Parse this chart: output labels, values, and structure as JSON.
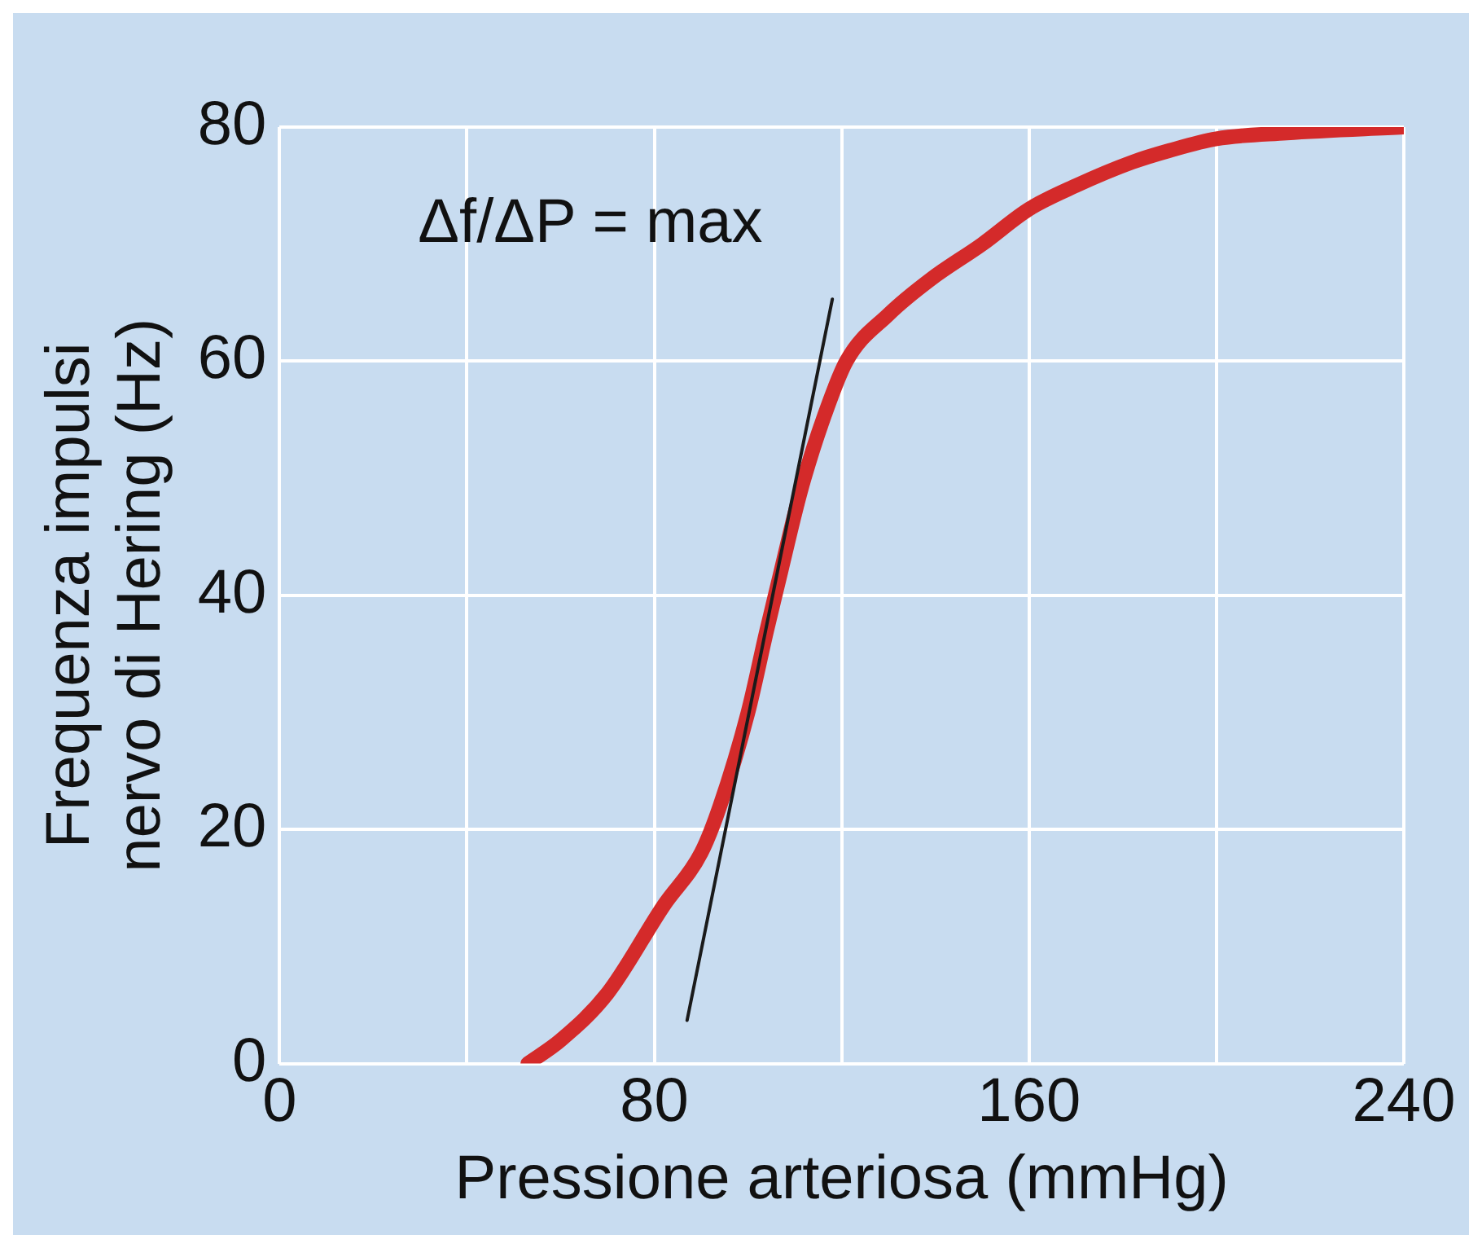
{
  "chart_data": {
    "type": "line",
    "xlabel": "Pressione arteriosa (mmHg)",
    "ylabel": "Frequenza impulsi\nnervo di Hering (Hz)",
    "xlim": [
      0,
      240
    ],
    "xticks": [
      0,
      {
        "value": 40,
        "label": null
      },
      80,
      {
        "value": 120,
        "label": null
      },
      160,
      {
        "value": 200,
        "label": null
      },
      240
    ],
    "ylim": [
      0,
      80
    ],
    "yticks": [
      0,
      20,
      40,
      60,
      80
    ],
    "grid": true,
    "legend": false,
    "marker": "none",
    "line_style": "solid",
    "series": [
      {
        "color": "#d42a2a",
        "x": [
          53,
          60,
          70,
          82,
          90,
          94,
          100,
          104,
          107,
          110,
          112,
          116,
          121,
          130,
          139,
          150,
          160,
          170,
          182,
          190,
          200,
          215,
          240
        ],
        "values": [
          0,
          2,
          6,
          13.5,
          18,
          22,
          30,
          37,
          42,
          47,
          50,
          55,
          60,
          64,
          67,
          70,
          73,
          75,
          77,
          78,
          79,
          79.5,
          80
        ]
      },
      {
        "color": "#1a1a1a",
        "x": [
          87,
          118
        ],
        "values": [
          3.7,
          65.3
        ]
      }
    ],
    "annotations": [
      "Δf/ΔP = max"
    ]
  }
}
